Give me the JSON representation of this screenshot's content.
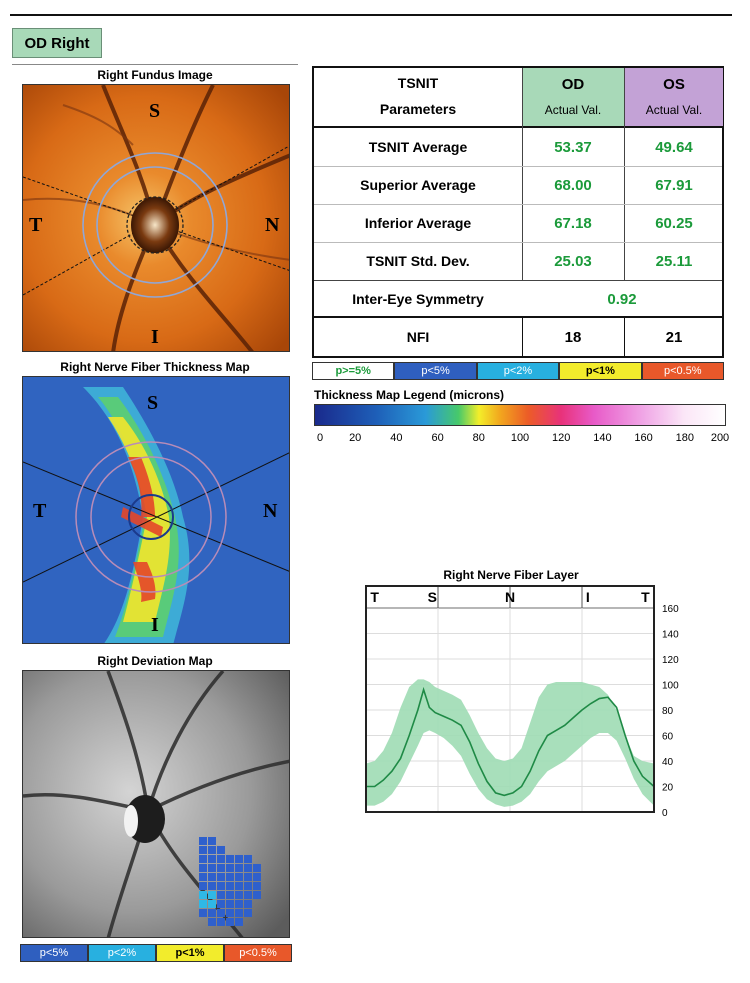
{
  "header": {
    "eye_label": "OD  Right"
  },
  "fundus": {
    "title": "Right Fundus Image",
    "labels": {
      "s": "S",
      "t": "T",
      "n": "N",
      "i": "I"
    }
  },
  "thickness_map": {
    "title": "Right Nerve Fiber Thickness Map",
    "labels": {
      "s": "S",
      "t": "T",
      "n": "N",
      "i": "I"
    }
  },
  "deviation_map": {
    "title": "Right Deviation Map"
  },
  "table": {
    "header": {
      "param_line1": "TSNIT",
      "param_line2": "Parameters",
      "od": "OD",
      "od_sub": "Actual Val.",
      "os": "OS",
      "os_sub": "Actual Val."
    },
    "rows": [
      {
        "label": "TSNIT Average",
        "od": "53.37",
        "os": "49.64"
      },
      {
        "label": "Superior Average",
        "od": "68.00",
        "os": "67.91"
      },
      {
        "label": "Inferior Average",
        "od": "67.18",
        "os": "60.25"
      },
      {
        "label": "TSNIT Std. Dev.",
        "od": "25.03",
        "os": "25.11"
      }
    ],
    "symmetry": {
      "label": "Inter-Eye Symmetry",
      "value": "0.92"
    },
    "nfi": {
      "label": "NFI",
      "od": "18",
      "os": "21"
    },
    "colors": {
      "od_header": "#a8d9b8",
      "os_header": "#c3a2d6"
    }
  },
  "p_legend": [
    {
      "label": "p>=5%",
      "bg": "#ffffff",
      "fg": "#1b9a3a"
    },
    {
      "label": "p<5%",
      "bg": "#2f5fbf",
      "fg": "#ffffff"
    },
    {
      "label": "p<2%",
      "bg": "#28b0e0",
      "fg": "#ffffff"
    },
    {
      "label": "p<1%",
      "bg": "#f2ec2c",
      "fg": "#000000"
    },
    {
      "label": "p<0.5%",
      "bg": "#e8582a",
      "fg": "#ffffff"
    }
  ],
  "deviation_legend": [
    {
      "label": "p<5%",
      "bg": "#2f5fbf",
      "fg": "#ffffff"
    },
    {
      "label": "p<2%",
      "bg": "#28b0e0",
      "fg": "#ffffff"
    },
    {
      "label": "p<1%",
      "bg": "#f2ec2c",
      "fg": "#000000"
    },
    {
      "label": "p<0.5%",
      "bg": "#e8582a",
      "fg": "#ffffff"
    }
  ],
  "thickness_legend": {
    "title": "Thickness Map Legend (microns)",
    "ticks": [
      "0",
      "20",
      "40",
      "60",
      "80",
      "100",
      "120",
      "140",
      "160",
      "180",
      "200"
    ]
  },
  "chart_data": {
    "type": "line",
    "title": "Right Nerve Fiber Layer",
    "sector_labels": [
      "T",
      "S",
      "N",
      "I",
      "T"
    ],
    "ylim": [
      0,
      160
    ],
    "yticks": [
      0,
      20,
      40,
      60,
      80,
      100,
      120,
      140,
      160
    ],
    "grid": true,
    "series_color": "#1f8a46",
    "band_color": "#9fdcb4",
    "x": [
      0,
      0.03,
      0.06,
      0.09,
      0.12,
      0.15,
      0.18,
      0.2,
      0.22,
      0.24,
      0.27,
      0.3,
      0.33,
      0.36,
      0.39,
      0.42,
      0.45,
      0.48,
      0.51,
      0.54,
      0.57,
      0.6,
      0.63,
      0.66,
      0.69,
      0.72,
      0.75,
      0.78,
      0.81,
      0.84,
      0.87,
      0.9,
      0.93,
      0.96,
      1.0
    ],
    "values": [
      20,
      20,
      25,
      32,
      42,
      60,
      80,
      96,
      82,
      78,
      75,
      72,
      68,
      55,
      38,
      24,
      15,
      13,
      15,
      20,
      32,
      48,
      60,
      64,
      68,
      74,
      80,
      85,
      89,
      90,
      82,
      60,
      40,
      28,
      20
    ],
    "band_upper": [
      38,
      40,
      48,
      62,
      82,
      98,
      104,
      104,
      102,
      98,
      95,
      92,
      88,
      76,
      62,
      50,
      42,
      40,
      42,
      50,
      70,
      90,
      100,
      102,
      102,
      102,
      102,
      100,
      98,
      92,
      80,
      60,
      44,
      40,
      38
    ],
    "band_lower": [
      5,
      5,
      8,
      14,
      24,
      38,
      52,
      62,
      64,
      62,
      58,
      52,
      44,
      30,
      18,
      10,
      6,
      4,
      5,
      8,
      14,
      24,
      32,
      36,
      40,
      46,
      52,
      58,
      62,
      62,
      56,
      42,
      26,
      14,
      5
    ]
  }
}
